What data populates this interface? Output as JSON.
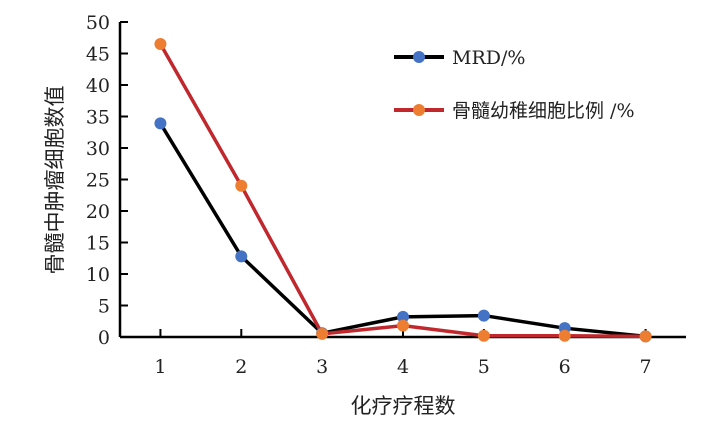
{
  "chart_data": {
    "type": "line",
    "xlabel": "化疗疗程数",
    "ylabel": "骨髓中肿瘤细胞数值",
    "x": [
      1,
      2,
      3,
      4,
      5,
      6,
      7
    ],
    "xlim": [
      0.5,
      7.5
    ],
    "ylim": [
      0,
      50
    ],
    "yticks": [
      0,
      5,
      10,
      15,
      20,
      25,
      30,
      35,
      40,
      45,
      50
    ],
    "grid": false,
    "legend_position": "top-right",
    "series": [
      {
        "name": "MRD/%",
        "values": [
          33.9,
          12.8,
          0.6,
          3.2,
          3.4,
          1.4,
          0.1
        ],
        "line_color": "#000000",
        "marker_color": "#4472c4"
      },
      {
        "name": "骨髓幼稚细胞比例 /%",
        "values": [
          46.5,
          24.0,
          0.5,
          1.8,
          0.2,
          0.2,
          0.1
        ],
        "line_color": "#c0282d",
        "marker_color": "#ed7d31"
      }
    ]
  }
}
